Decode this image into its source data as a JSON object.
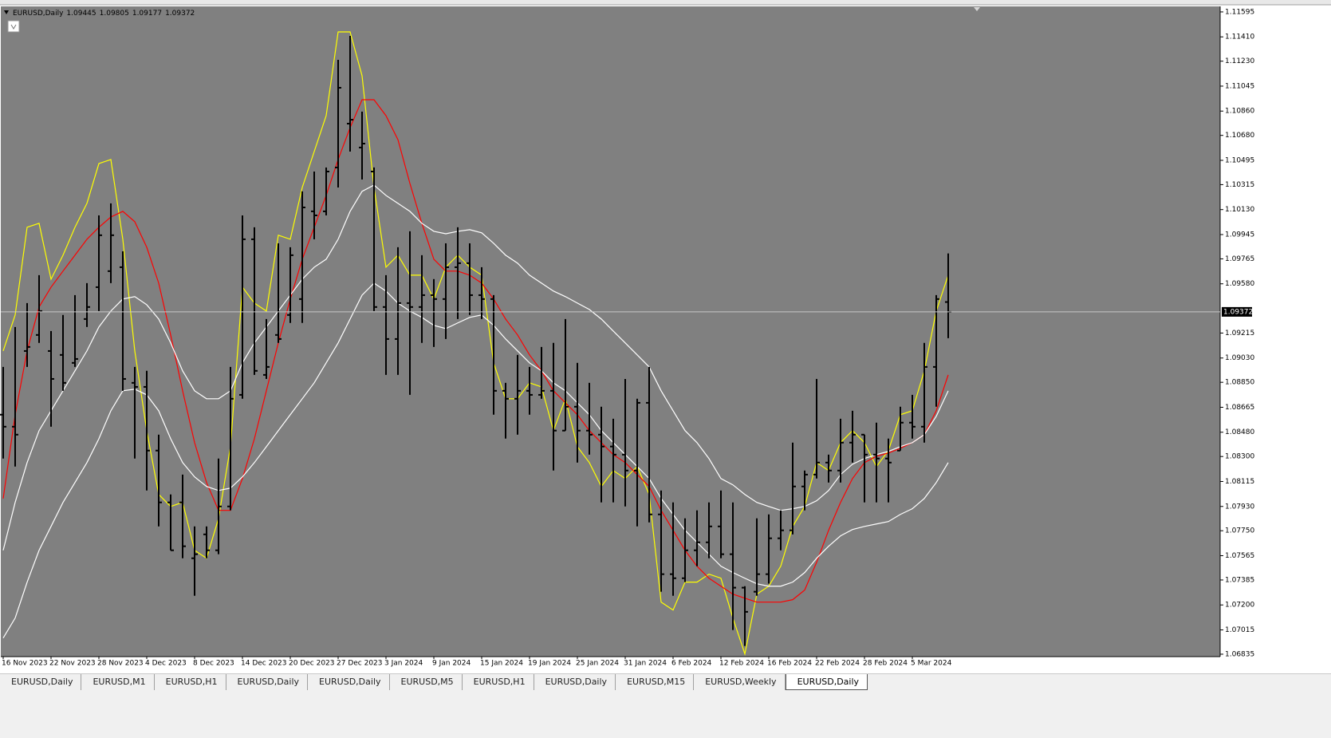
{
  "chart_data": {
    "type": "ohlc",
    "title": "EURUSD,Daily",
    "color": "#000000",
    "background": "#808080",
    "categories": [
      "16 Nov 2023",
      null,
      null,
      null,
      "22 Nov 2023",
      null,
      null,
      null,
      "28 Nov 2023",
      null,
      null,
      null,
      "4 Dec 2023",
      null,
      null,
      null,
      "8 Dec 2023",
      null,
      null,
      null,
      "14 Dec 2023",
      null,
      null,
      null,
      "20 Dec 2023",
      null,
      null,
      null,
      "27 Dec 2023",
      null,
      null,
      null,
      "3 Jan 2024",
      null,
      null,
      null,
      "9 Jan 2024",
      null,
      null,
      null,
      "15 Jan 2024",
      null,
      null,
      null,
      "19 Jan 2024",
      null,
      null,
      null,
      "25 Jan 2024",
      null,
      null,
      null,
      "31 Jan 2024",
      null,
      null,
      null,
      "6 Feb 2024",
      null,
      null,
      null,
      "12 Feb 2024",
      null,
      null,
      null,
      "16 Feb 2024",
      null,
      null,
      null,
      "22 Feb 2024",
      null,
      null,
      null,
      "28 Feb 2024",
      null,
      null,
      null,
      "5 Mar 2024",
      null,
      null,
      null
    ],
    "open": [
      1.0861,
      1.08521,
      1.09082,
      1.09201,
      1.09082,
      1.09053,
      1.08994,
      1.09319,
      1.09555,
      1.09674,
      1.09703,
      1.08846,
      1.08816,
      1.08344,
      1.0796,
      1.0796,
      1.07546,
      1.07723,
      1.07605,
      1.0793,
      1.08757,
      1.0991,
      1.08905,
      1.09201,
      1.09349,
      1.09467,
      1.10117,
      1.10117,
      1.10442,
      1.10767,
      1.1059,
      1.10412,
      1.09408,
      1.09171,
      1.09437,
      1.09408,
      1.09496,
      1.09467,
      1.09703,
      1.09733,
      1.09496,
      1.09467,
      1.08787,
      1.08728,
      1.08787,
      1.08757,
      1.08787,
      1.08492,
      1.08669,
      1.08492,
      1.08462,
      1.08374,
      1.08314,
      1.08196,
      1.08698,
      1.07871,
      1.07428,
      1.07398,
      1.07605,
      1.07664,
      1.07782,
      1.07576,
      1.07328,
      1.07298,
      1.07428,
      1.07694,
      1.07753,
      1.08078,
      1.08166,
      1.08255,
      1.08196,
      1.08403,
      1.08462,
      1.08314,
      1.08285,
      1.08344,
      1.08551,
      1.08521,
      1.08964,
      1.09445
    ],
    "high": [
      1.08964,
      1.0926,
      1.09437,
      1.09644,
      1.0923,
      1.09349,
      1.09496,
      1.09585,
      1.10087,
      1.10176,
      1.09821,
      1.08964,
      1.08935,
      1.08462,
      1.08019,
      1.08166,
      1.07782,
      1.07782,
      1.08285,
      1.08964,
      1.10087,
      1.09999,
      1.09319,
      1.0988,
      1.09851,
      1.10265,
      1.10412,
      1.10442,
      1.1124,
      1.11417,
      1.10856,
      1.10442,
      1.09644,
      1.09851,
      1.09969,
      1.09792,
      1.09615,
      1.0988,
      1.09999,
      1.0988,
      1.09703,
      1.09496,
      1.08846,
      1.09053,
      1.08964,
      1.09112,
      1.09142,
      1.09319,
      1.08994,
      1.08846,
      1.08669,
      1.0858,
      1.08875,
      1.08728,
      1.08964,
      1.08048,
      1.0796,
      1.07842,
      1.07901,
      1.0796,
      1.08048,
      1.0796,
      1.07339,
      1.07842,
      1.07871,
      1.07901,
      1.08403,
      1.08196,
      1.08875,
      1.08314,
      1.0858,
      1.08639,
      1.08462,
      1.08551,
      1.08433,
      1.08669,
      1.08757,
      1.09142,
      1.09496,
      1.09805
    ],
    "low": [
      1.08285,
      1.08226,
      1.08964,
      1.09142,
      1.08521,
      1.08787,
      1.08964,
      1.0926,
      1.09378,
      1.09585,
      1.08787,
      1.08285,
      1.08048,
      1.07782,
      1.07605,
      1.07546,
      1.07268,
      1.07546,
      1.07576,
      1.07901,
      1.08728,
      1.08905,
      1.08875,
      1.09142,
      1.0929,
      1.0929,
      1.0991,
      1.10087,
      1.10294,
      1.1056,
      1.10353,
      1.09378,
      1.08905,
      1.08905,
      1.08757,
      1.09142,
      1.09112,
      1.09171,
      1.09319,
      1.09349,
      1.09319,
      1.0861,
      1.08433,
      1.08462,
      1.0861,
      1.08728,
      1.08196,
      1.08492,
      1.08255,
      1.08314,
      1.0796,
      1.0796,
      1.0793,
      1.07782,
      1.07812,
      1.07298,
      1.07268,
      1.07369,
      1.07487,
      1.07546,
      1.07546,
      1.07014,
      1.06896,
      1.07268,
      1.07358,
      1.07605,
      1.07723,
      1.07901,
      1.08137,
      1.08107,
      1.08107,
      1.08255,
      1.0796,
      1.0796,
      1.0796,
      1.08344,
      1.08433,
      1.08403,
      1.08669,
      1.09177
    ],
    "close": [
      1.08521,
      1.08462,
      1.09112,
      1.09378,
      1.08875,
      1.08846,
      1.09023,
      1.09408,
      1.0994,
      1.0994,
      1.08875,
      1.08816,
      1.08344,
      1.0796,
      1.07605,
      1.07635,
      1.07576,
      1.07605,
      1.0793,
      1.08728,
      1.0991,
      1.08935,
      1.08964,
      1.09171,
      1.09792,
      1.10146,
      1.10087,
      1.10412,
      1.11033,
      1.10796,
      1.10619,
      1.09408,
      1.09171,
      1.09437,
      1.09408,
      1.09496,
      1.09467,
      1.09703,
      1.09733,
      1.09496,
      1.09467,
      1.08787,
      1.08728,
      1.08787,
      1.08757,
      1.08787,
      1.08492,
      1.08669,
      1.08492,
      1.08462,
      1.08374,
      1.08314,
      1.08196,
      1.08698,
      1.07871,
      1.07428,
      1.07398,
      1.07605,
      1.07664,
      1.07782,
      1.07576,
      1.07328,
      1.07149,
      1.07428,
      1.07694,
      1.07753,
      1.08078,
      1.08166,
      1.08255,
      1.08196,
      1.08403,
      1.08462,
      1.08314,
      1.08285,
      1.08255,
      1.08551,
      1.08521,
      1.08964,
      1.09467,
      1.09372
    ],
    "series": [
      {
        "color": "#ffff00",
        "values": [
          1.09083,
          1.09349,
          1.09999,
          1.10028,
          1.09614,
          1.09792,
          1.09999,
          1.10176,
          1.10471,
          1.10501,
          1.0991,
          1.09083,
          1.08492,
          1.08019,
          1.0793,
          1.0796,
          1.07605,
          1.07546,
          1.07841,
          1.08373,
          1.09555,
          1.09437,
          1.09378,
          1.0994,
          1.0991,
          1.10294,
          1.1056,
          1.10826,
          1.11447,
          1.11447,
          1.11122,
          1.10294,
          1.09703,
          1.09792,
          1.09644,
          1.09644,
          1.09467,
          1.09703,
          1.09792,
          1.09703,
          1.09644,
          1.08994,
          1.08728,
          1.08728,
          1.08846,
          1.08816,
          1.08492,
          1.08728,
          1.08373,
          1.08255,
          1.08078,
          1.08196,
          1.08137,
          1.08226,
          1.08019,
          1.07221,
          1.07162,
          1.07369,
          1.07369,
          1.07428,
          1.07398,
          1.07103,
          1.06837,
          1.0728,
          1.07339,
          1.07487,
          1.07782,
          1.0793,
          1.08255,
          1.08196,
          1.08403,
          1.08492,
          1.08403,
          1.08226,
          1.08344,
          1.0861,
          1.08639,
          1.08935,
          1.09378,
          1.09644
        ]
      },
      {
        "color": "#ff0000",
        "values": [
          1.07989,
          1.0861,
          1.09083,
          1.09408,
          1.09555,
          1.09674,
          1.09792,
          1.0991,
          1.09999,
          1.10075,
          1.10117,
          1.1004,
          1.09851,
          1.09585,
          1.09201,
          1.08787,
          1.08403,
          1.08107,
          1.07901,
          1.07901,
          1.08137,
          1.08432,
          1.08787,
          1.09142,
          1.09467,
          1.09762,
          1.09999,
          1.10235,
          1.10501,
          1.10737,
          1.10944,
          1.10944,
          1.10826,
          1.10648,
          1.10324,
          1.10028,
          1.09762,
          1.09674,
          1.09674,
          1.09644,
          1.09585,
          1.09467,
          1.09319,
          1.09201,
          1.09053,
          1.08935,
          1.08787,
          1.08698,
          1.0861,
          1.08492,
          1.08403,
          1.08314,
          1.08255,
          1.08166,
          1.08078,
          1.07901,
          1.07753,
          1.07605,
          1.07487,
          1.07398,
          1.07339,
          1.0728,
          1.0725,
          1.07221,
          1.07221,
          1.07221,
          1.07239,
          1.0731,
          1.07516,
          1.07753,
          1.0796,
          1.08137,
          1.08255,
          1.08302,
          1.08326,
          1.08361,
          1.08403,
          1.08462,
          1.08639,
          1.08905
        ]
      },
      {
        "color": "#ffffff",
        "values": [
          1.07605,
          1.0796,
          1.08255,
          1.08492,
          1.08639,
          1.08787,
          1.08935,
          1.09083,
          1.0926,
          1.09378,
          1.09467,
          1.09485,
          1.09425,
          1.09319,
          1.09142,
          1.08935,
          1.08787,
          1.08728,
          1.08728,
          1.08787,
          1.08994,
          1.09142,
          1.0926,
          1.09378,
          1.09496,
          1.09614,
          1.09703,
          1.09762,
          1.0991,
          1.10117,
          1.10265,
          1.10312,
          1.10235,
          1.10176,
          1.10117,
          1.10028,
          1.09969,
          1.09951,
          1.09969,
          1.09981,
          1.09958,
          1.0988,
          1.09792,
          1.09733,
          1.09644,
          1.09585,
          1.09526,
          1.09485,
          1.09437,
          1.0939,
          1.09319,
          1.0923,
          1.09142,
          1.09053,
          1.08964,
          1.08787,
          1.08639,
          1.08492,
          1.08403,
          1.08285,
          1.08137,
          1.0809,
          1.08019,
          1.0796,
          1.0793,
          1.07901,
          1.07913,
          1.0793,
          1.07972,
          1.08048,
          1.08166,
          1.08243,
          1.08285,
          1.08314,
          1.08338,
          1.08373,
          1.08403,
          1.08462,
          1.08598,
          1.08787
        ]
      },
      {
        "color": "#ffffff",
        "values": [
          1.06955,
          1.07103,
          1.07369,
          1.07605,
          1.07782,
          1.0796,
          1.08107,
          1.08255,
          1.08432,
          1.08639,
          1.08787,
          1.08799,
          1.08757,
          1.08639,
          1.08432,
          1.08255,
          1.08149,
          1.08078,
          1.08048,
          1.08066,
          1.08149,
          1.08255,
          1.08373,
          1.08492,
          1.0861,
          1.08728,
          1.08846,
          1.08994,
          1.09142,
          1.09319,
          1.09496,
          1.09585,
          1.09526,
          1.09437,
          1.09378,
          1.09331,
          1.09272,
          1.09248,
          1.0929,
          1.09331,
          1.09349,
          1.09272,
          1.09171,
          1.09083,
          1.08994,
          1.08935,
          1.08846,
          1.08787,
          1.08698,
          1.0861,
          1.08492,
          1.08403,
          1.08314,
          1.08226,
          1.08137,
          1.07989,
          1.07871,
          1.07753,
          1.07664,
          1.07576,
          1.07487,
          1.0744,
          1.07398,
          1.07357,
          1.07339,
          1.07339,
          1.07369,
          1.0744,
          1.07546,
          1.07635,
          1.07712,
          1.07759,
          1.07782,
          1.078,
          1.07818,
          1.07871,
          1.07913,
          1.07989,
          1.08107,
          1.08255
        ]
      }
    ],
    "ylim": [
      1.06817,
      1.11636
    ],
    "yticks": [
      1.11595,
      {
        "value": 1.1141,
        "label": "1.11410"
      },
      {
        "value": 1.1123,
        "label": "1.11230"
      },
      1.11045,
      {
        "value": 1.1086,
        "label": "1.10860"
      },
      {
        "value": 1.1068,
        "label": "1.10680"
      },
      1.10495,
      1.10315,
      {
        "value": 1.1013,
        "label": "1.10130"
      },
      1.09945,
      1.09765,
      {
        "value": 1.0958,
        "label": "1.09580"
      },
      1.09215,
      {
        "value": 1.0903,
        "label": "1.09030"
      },
      {
        "value": 1.0885,
        "label": "1.08850"
      },
      1.08665,
      {
        "value": 1.0848,
        "label": "1.08480"
      },
      {
        "value": 1.083,
        "label": "1.08300"
      },
      1.08115,
      {
        "value": 1.0793,
        "label": "1.07930"
      },
      {
        "value": 1.0775,
        "label": "1.07750"
      },
      1.07565,
      1.07385,
      {
        "value": 1.072,
        "label": "1.07200"
      },
      1.07015,
      1.06835
    ],
    "grid": false
  },
  "ui": {
    "tabs": [
      "EURUSD,Daily",
      "EURUSD,M1",
      "EURUSD,H1",
      "EURUSD,Daily",
      "EURUSD,Daily",
      "EURUSD,M5",
      "EURUSD,H1",
      "EURUSD,Daily",
      "EURUSD,M15",
      "EURUSD,Weekly",
      "EURUSD,Daily"
    ],
    "active_tab": 10
  }
}
